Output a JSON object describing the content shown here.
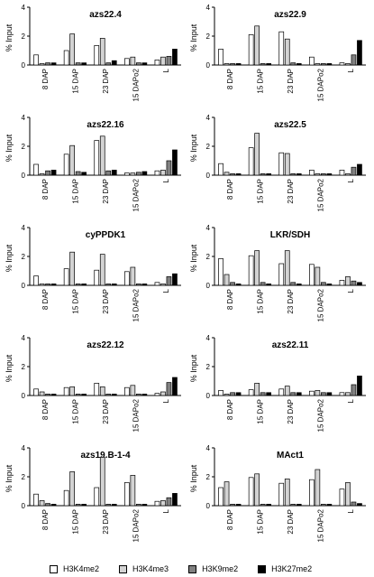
{
  "legend": [
    {
      "label": "H3K4me2",
      "color": "#ffffff"
    },
    {
      "label": "H3K4me3",
      "color": "#d3d3d3"
    },
    {
      "label": "H3K9me2",
      "color": "#808080"
    },
    {
      "label": "H3K27me2",
      "color": "#000000"
    }
  ],
  "chart_data": [
    {
      "type": "bar",
      "title": "azs22.4",
      "ylabel": "% Input",
      "ylim": [
        0,
        4
      ],
      "yticks": [
        0,
        2,
        4
      ],
      "categories": [
        "8 DAP",
        "15 DAP",
        "23 DAP",
        "15 DAPo2",
        "L"
      ],
      "series": [
        {
          "name": "H3K4me2",
          "values": [
            0.7,
            1.0,
            1.35,
            0.45,
            0.35
          ]
        },
        {
          "name": "H3K4me3",
          "values": [
            0.1,
            2.15,
            1.85,
            0.55,
            0.55
          ]
        },
        {
          "name": "H3K9me2",
          "values": [
            0.15,
            0.15,
            0.15,
            0.15,
            0.6
          ]
        },
        {
          "name": "H3K27me2",
          "values": [
            0.15,
            0.15,
            0.3,
            0.15,
            1.1
          ]
        }
      ]
    },
    {
      "type": "bar",
      "title": "azs22.9",
      "ylabel": "% Input",
      "ylim": [
        0,
        4
      ],
      "yticks": [
        0,
        2,
        4
      ],
      "categories": [
        "8 DAP",
        "15 DAP",
        "23 DAP",
        "15 DAPo2",
        "L"
      ],
      "series": [
        {
          "name": "H3K4me2",
          "values": [
            1.1,
            2.1,
            2.3,
            0.55,
            0.15
          ]
        },
        {
          "name": "H3K4me3",
          "values": [
            0.1,
            2.7,
            1.8,
            0.1,
            0.1
          ]
        },
        {
          "name": "H3K9me2",
          "values": [
            0.1,
            0.1,
            0.15,
            0.1,
            0.7
          ]
        },
        {
          "name": "H3K27me2",
          "values": [
            0.1,
            0.1,
            0.1,
            0.1,
            1.7
          ]
        }
      ]
    },
    {
      "type": "bar",
      "title": "azs22.16",
      "ylabel": "% Input",
      "ylim": [
        0,
        4
      ],
      "yticks": [
        0,
        2,
        4
      ],
      "categories": [
        "8 DAP",
        "15 DAP",
        "23 DAP",
        "15 DAPo2",
        "L"
      ],
      "series": [
        {
          "name": "H3K4me2",
          "values": [
            0.75,
            1.45,
            2.4,
            0.15,
            0.3
          ]
        },
        {
          "name": "H3K4me3",
          "values": [
            0.1,
            2.05,
            2.7,
            0.15,
            0.35
          ]
        },
        {
          "name": "H3K9me2",
          "values": [
            0.3,
            0.25,
            0.3,
            0.2,
            1.0
          ]
        },
        {
          "name": "H3K27me2",
          "values": [
            0.35,
            0.2,
            0.35,
            0.25,
            1.75
          ]
        }
      ]
    },
    {
      "type": "bar",
      "title": "azs22.5",
      "ylabel": "% Input",
      "ylim": [
        0,
        4
      ],
      "yticks": [
        0,
        2,
        4
      ],
      "categories": [
        "8 DAP",
        "15 DAP",
        "23 DAP",
        "15 DAPo2",
        "L"
      ],
      "series": [
        {
          "name": "H3K4me2",
          "values": [
            0.8,
            1.9,
            1.55,
            0.35,
            0.35
          ]
        },
        {
          "name": "H3K4me3",
          "values": [
            0.2,
            2.9,
            1.5,
            0.1,
            0.1
          ]
        },
        {
          "name": "H3K9me2",
          "values": [
            0.1,
            0.1,
            0.1,
            0.1,
            0.55
          ]
        },
        {
          "name": "H3K27me2",
          "values": [
            0.1,
            0.1,
            0.1,
            0.1,
            0.75
          ]
        }
      ]
    },
    {
      "type": "bar",
      "title": "cyPPDK1",
      "ylabel": "% Input",
      "ylim": [
        0,
        4
      ],
      "yticks": [
        0,
        2,
        4
      ],
      "categories": [
        "8 DAP",
        "15 DAP",
        "23 DAP",
        "15 DAPo2",
        "L"
      ],
      "series": [
        {
          "name": "H3K4me2",
          "values": [
            0.65,
            1.15,
            1.05,
            0.95,
            0.2
          ]
        },
        {
          "name": "H3K4me3",
          "values": [
            0.1,
            2.3,
            2.15,
            1.25,
            0.1
          ]
        },
        {
          "name": "H3K9me2",
          "values": [
            0.1,
            0.1,
            0.1,
            0.1,
            0.6
          ]
        },
        {
          "name": "H3K27me2",
          "values": [
            0.1,
            0.1,
            0.1,
            0.1,
            0.8
          ]
        }
      ]
    },
    {
      "type": "bar",
      "title": "LKR/SDH",
      "ylabel": "% Input",
      "ylim": [
        0,
        4
      ],
      "yticks": [
        0,
        2,
        4
      ],
      "categories": [
        "8 DAP",
        "15 DAP",
        "23 DAP",
        "15 DAPo2",
        "L"
      ],
      "series": [
        {
          "name": "H3K4me2",
          "values": [
            1.85,
            2.05,
            1.5,
            1.45,
            0.35
          ]
        },
        {
          "name": "H3K4me3",
          "values": [
            0.75,
            2.4,
            2.4,
            1.25,
            0.6
          ]
        },
        {
          "name": "H3K9me2",
          "values": [
            0.2,
            0.2,
            0.2,
            0.2,
            0.3
          ]
        },
        {
          "name": "H3K27me2",
          "values": [
            0.1,
            0.1,
            0.1,
            0.1,
            0.2
          ]
        }
      ]
    },
    {
      "type": "bar",
      "title": "azs22.12",
      "ylabel": "% Input",
      "ylim": [
        0,
        4
      ],
      "yticks": [
        0,
        2,
        4
      ],
      "categories": [
        "8 DAP",
        "15 DAP",
        "23 DAP",
        "15 DAPo2",
        "L"
      ],
      "series": [
        {
          "name": "H3K4me2",
          "values": [
            0.45,
            0.55,
            0.85,
            0.55,
            0.15
          ]
        },
        {
          "name": "H3K4me3",
          "values": [
            0.25,
            0.6,
            0.6,
            0.7,
            0.25
          ]
        },
        {
          "name": "H3K9me2",
          "values": [
            0.1,
            0.1,
            0.1,
            0.1,
            0.9
          ]
        },
        {
          "name": "H3K27me2",
          "values": [
            0.1,
            0.1,
            0.1,
            0.1,
            1.25
          ]
        }
      ]
    },
    {
      "type": "bar",
      "title": "azs22.11",
      "ylabel": "% Input",
      "ylim": [
        0,
        4
      ],
      "yticks": [
        0,
        2,
        4
      ],
      "categories": [
        "8 DAP",
        "15 DAP",
        "23 DAP",
        "15 DAPo2",
        "L"
      ],
      "series": [
        {
          "name": "H3K4me2",
          "values": [
            0.35,
            0.4,
            0.45,
            0.3,
            0.2
          ]
        },
        {
          "name": "H3K4me3",
          "values": [
            0.1,
            0.85,
            0.65,
            0.35,
            0.2
          ]
        },
        {
          "name": "H3K9me2",
          "values": [
            0.2,
            0.2,
            0.2,
            0.2,
            0.75
          ]
        },
        {
          "name": "H3K27me2",
          "values": [
            0.2,
            0.2,
            0.2,
            0.2,
            1.35
          ]
        }
      ]
    },
    {
      "type": "bar",
      "title": "azs19.B-1-4",
      "ylabel": "% Input",
      "ylim": [
        0,
        4
      ],
      "yticks": [
        0,
        2,
        4
      ],
      "categories": [
        "8 DAP",
        "15 DAP",
        "23 DAP",
        "15 DAPo2",
        "L"
      ],
      "series": [
        {
          "name": "H3K4me2",
          "values": [
            0.8,
            1.05,
            1.25,
            1.6,
            0.3
          ]
        },
        {
          "name": "H3K4me3",
          "values": [
            0.35,
            2.35,
            3.35,
            2.1,
            0.35
          ]
        },
        {
          "name": "H3K9me2",
          "values": [
            0.15,
            0.1,
            0.1,
            0.1,
            0.55
          ]
        },
        {
          "name": "H3K27me2",
          "values": [
            0.1,
            0.1,
            0.1,
            0.1,
            0.85
          ]
        }
      ]
    },
    {
      "type": "bar",
      "title": "MAct1",
      "ylabel": "% Input",
      "ylim": [
        0,
        4
      ],
      "yticks": [
        0,
        2,
        4
      ],
      "categories": [
        "8 DAP",
        "15 DAP",
        "23 DAP",
        "15 DAPo2",
        "L"
      ],
      "series": [
        {
          "name": "H3K4me2",
          "values": [
            1.25,
            1.95,
            1.55,
            1.8,
            1.15
          ]
        },
        {
          "name": "H3K4me3",
          "values": [
            1.65,
            2.2,
            1.85,
            2.5,
            1.6
          ]
        },
        {
          "name": "H3K9me2",
          "values": [
            0.1,
            0.1,
            0.1,
            0.1,
            0.25
          ]
        },
        {
          "name": "H3K27me2",
          "values": [
            0.1,
            0.1,
            0.1,
            0.1,
            0.15
          ]
        }
      ]
    }
  ]
}
